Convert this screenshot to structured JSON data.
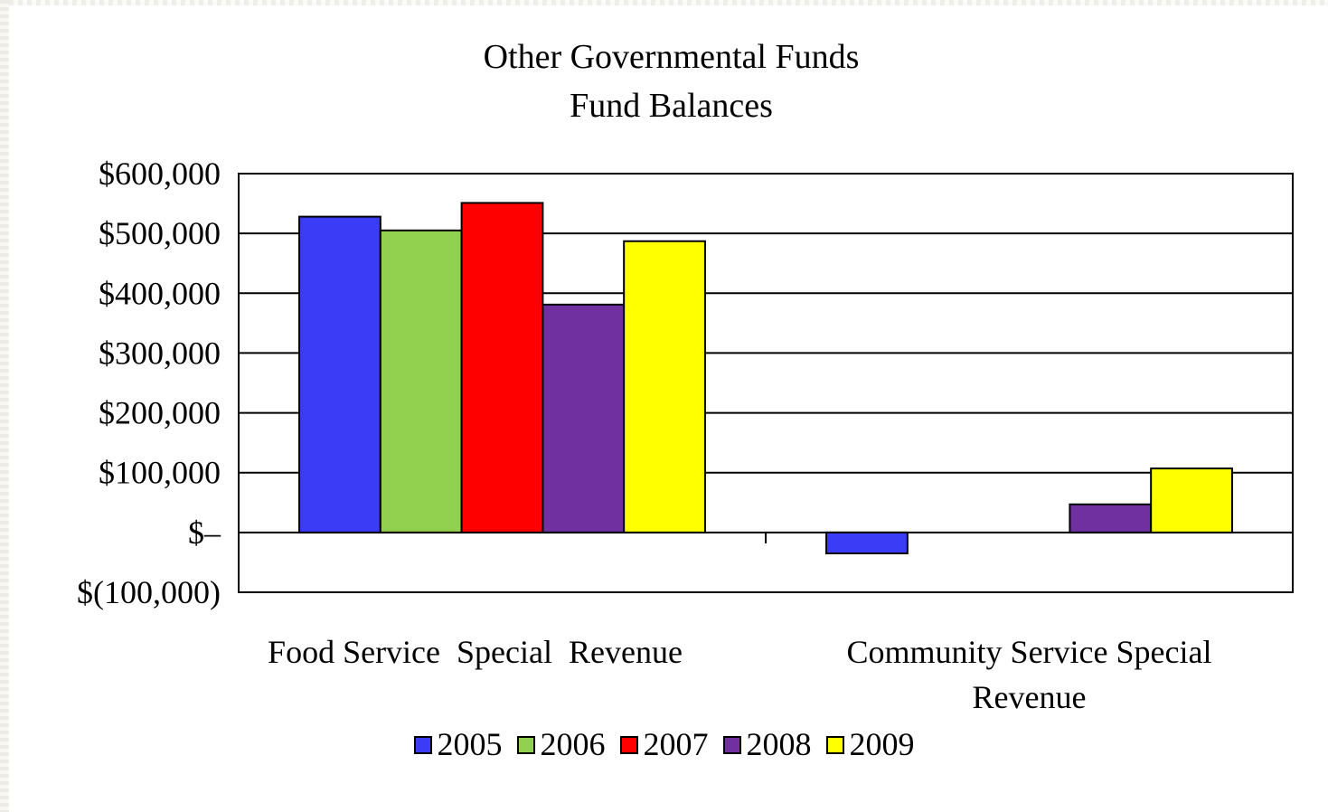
{
  "chart_data": {
    "type": "bar",
    "title": "Other Governmental Funds",
    "subtitle": "Fund Balances",
    "categories": [
      [
        "Food Service  Special  Revenue"
      ],
      [
        "Community Service Special",
        "Revenue"
      ]
    ],
    "series": [
      {
        "name": "2005",
        "color": "#3b3cf5",
        "values": [
          528000,
          -35000
        ]
      },
      {
        "name": "2006",
        "color": "#92d050",
        "values": [
          505000,
          0
        ]
      },
      {
        "name": "2007",
        "color": "#ff0000",
        "values": [
          551000,
          0
        ]
      },
      {
        "name": "2008",
        "color": "#7030a0",
        "values": [
          381000,
          47000
        ]
      },
      {
        "name": "2009",
        "color": "#ffff00",
        "values": [
          487000,
          107000
        ]
      }
    ],
    "y_ticks": [
      {
        "value": 600000,
        "label": "$600,000"
      },
      {
        "value": 500000,
        "label": "$500,000"
      },
      {
        "value": 400000,
        "label": "$400,000"
      },
      {
        "value": 300000,
        "label": "$300,000"
      },
      {
        "value": 200000,
        "label": "$200,000"
      },
      {
        "value": 100000,
        "label": "$100,000"
      },
      {
        "value": 0,
        "label": "$–"
      },
      {
        "value": -100000,
        "label": "$(100,000)"
      }
    ],
    "ylim": [
      -100000,
      600000
    ],
    "grid": true,
    "legend_position": "bottom"
  }
}
